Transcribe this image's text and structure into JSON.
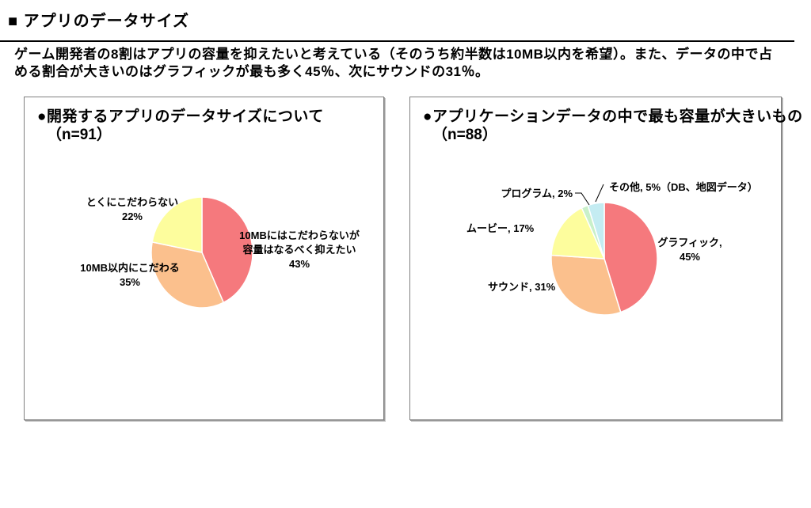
{
  "page": {
    "title": "■ アプリのデータサイズ",
    "summary_line1": "ゲーム開発者の8割はアプリの容量を抑えたいと考えている（そのうち約半数は10MB以内を希望）。また、データの中で占",
    "summary_line2": "める割合が大きいのはグラフィックが最も多く45％、次にサウンドの31％。"
  },
  "colors": {
    "slice_red": "#f5797d",
    "slice_orange": "#fbc08d",
    "slice_yellow": "#fdfd9d",
    "slice_green": "#c9f0c9",
    "slice_cyan": "#c4ecf2",
    "panel_border": "#808080",
    "rule_black": "#000000"
  },
  "charts": [
    {
      "heading": "●開発するアプリのデータサイズについて",
      "sample": "（n=91）",
      "chart_data": {
        "type": "pie",
        "title": "開発するアプリのデータサイズについて",
        "n_label": "（n=91）",
        "direction": "clockwise",
        "start_angle_deg": 0,
        "slices": [
          {
            "label": "10MBにはこだわらないが容量はなるべく抑えたい",
            "value": 43,
            "color": "#f5797d"
          },
          {
            "label": "10MB以内にこだわる",
            "value": 35,
            "color": "#fbc08d"
          },
          {
            "label": "とくにこだわらない",
            "value": 22,
            "color": "#fdfd9d"
          }
        ],
        "callouts": [
          {
            "lines": [
              "10MBにはこだわらないが",
              "容量はなるべく抑えたい",
              "43%"
            ]
          },
          {
            "lines": [
              "10MB以内にこだわる",
              "35%"
            ]
          },
          {
            "lines": [
              "とくにこだわらない",
              "22%"
            ]
          }
        ]
      }
    },
    {
      "heading": "●アプリケーションデータの中で最も容量が大きいもの",
      "sample": "（n=88）",
      "chart_data": {
        "type": "pie",
        "title": "アプリケーションデータの中で最も容量が大きいもの",
        "n_label": "（n=88）",
        "direction": "clockwise",
        "start_angle_deg": 0,
        "slices": [
          {
            "label": "グラフィック",
            "value": 45,
            "color": "#f5797d"
          },
          {
            "label": "サウンド",
            "value": 31,
            "color": "#fbc08d"
          },
          {
            "label": "ムービー",
            "value": 17,
            "color": "#fdfd9d"
          },
          {
            "label": "プログラム",
            "value": 2,
            "color": "#c9f0c9"
          },
          {
            "label": "その他（DB、地図データ）",
            "value": 5,
            "color": "#c4ecf2"
          }
        ],
        "callouts": [
          {
            "lines": [
              "グラフィック,",
              "45%"
            ]
          },
          {
            "lines": [
              "サウンド, 31%"
            ]
          },
          {
            "lines": [
              "ムービー, 17%"
            ]
          },
          {
            "lines": [
              "プログラム, 2%"
            ]
          },
          {
            "lines": [
              "その他, 5%（DB、地図データ）"
            ]
          }
        ]
      }
    }
  ]
}
